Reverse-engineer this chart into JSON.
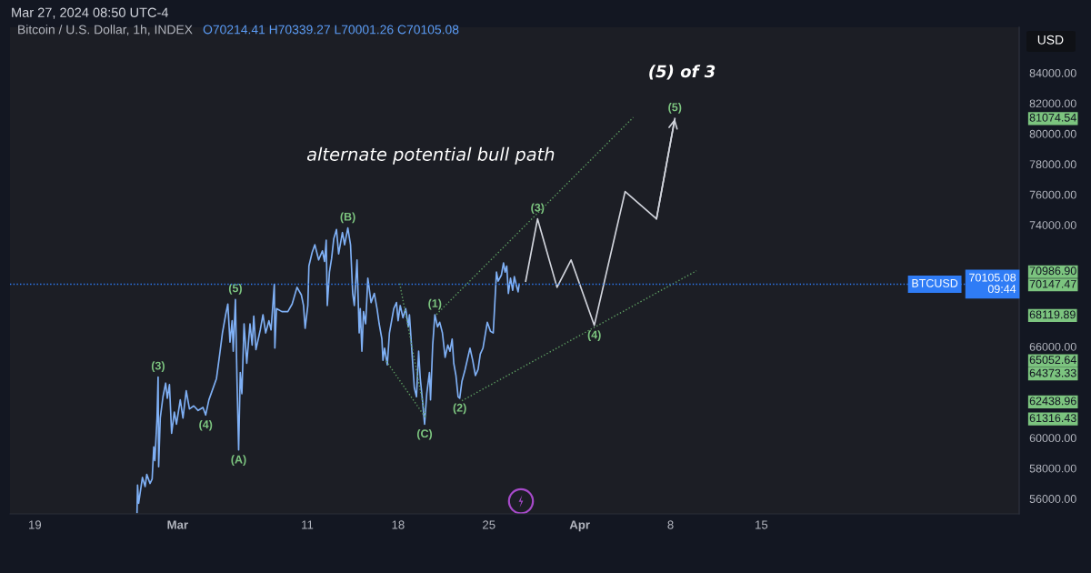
{
  "chart_data": {
    "type": "line",
    "title": "Bitcoin / U.S. Dollar, 1h, INDEX",
    "subtitle": "O70214.41 H70339.27 L70001.26 C70105.08",
    "ylabel": "USD",
    "xlim": [
      "2024-02-17T02:00",
      "2024-05-04T21:00"
    ],
    "xticks": [
      {
        "value": "2024-02-19",
        "label": "19"
      },
      {
        "value": "2024-03-01",
        "label": "Mar"
      },
      {
        "value": "2024-03-11",
        "label": "11"
      },
      {
        "value": "2024-03-18",
        "label": "18"
      },
      {
        "value": "2024-03-25",
        "label": "25"
      },
      {
        "value": "2024-04-01",
        "label": "Apr"
      },
      {
        "value": "2024-04-08",
        "label": "8"
      },
      {
        "value": "2024-04-15",
        "label": "15"
      }
    ],
    "ylim": [
      55000,
      87000
    ],
    "yticks": [
      {
        "value": 84000,
        "label": "84000.00"
      },
      {
        "value": 82000,
        "label": "82000.00"
      },
      {
        "value": 80000,
        "label": "80000.00"
      },
      {
        "value": 78000,
        "label": "78000.00"
      },
      {
        "value": 76000,
        "label": "76000.00"
      },
      {
        "value": 74000,
        "label": "74000.00"
      },
      {
        "value": 66000,
        "label": "66000.00"
      },
      {
        "value": 60000,
        "label": "60000.00"
      },
      {
        "value": 58000,
        "label": "58000.00"
      },
      {
        "value": 56000,
        "label": "56000.00"
      }
    ],
    "y2lim": [
      55000,
      87000
    ],
    "y2ticks": [
      81074.54,
      {
        "value": 70986.9,
        "label": "70986.90"
      },
      70147.47,
      68119.89,
      65052.64,
      64373.33,
      62438.96,
      61316.43
    ],
    "ref_lines": [
      {
        "axis": "y2",
        "value": 70105.08,
        "label": "BTCUSD",
        "color": "#2f7cf6",
        "line_style": "dotted"
      }
    ],
    "series": [
      {
        "color": "#7fb0f5",
        "line_style": "solid",
        "x": [
          "2024-02-26T21:00",
          "2024-02-26T22:00",
          "2024-02-27T00:00",
          "2024-02-27T07:00",
          "2024-02-27T12:00",
          "2024-02-27T15:00",
          "2024-02-27T21:00",
          "2024-02-28T01:00",
          "2024-02-28T04:00",
          "2024-02-28T06:00",
          "2024-02-28T10:00",
          "2024-02-28T12:00",
          "2024-02-28T13:00",
          "2024-02-28T16:00",
          "2024-02-28T21:00",
          "2024-02-29T02:00",
          "2024-02-29T05:00",
          "2024-02-29T09:00",
          "2024-02-29T13:00",
          "2024-02-29T18:00",
          "2024-02-29T22:00",
          "2024-03-01T05:00",
          "2024-03-01T10:00",
          "2024-03-01T16:00",
          "2024-03-01T22:00",
          "2024-03-02T06:00",
          "2024-03-02T14:00",
          "2024-03-02T23:00",
          "2024-03-03T04:00",
          "2024-03-03T10:00",
          "2024-03-04T00:00",
          "2024-03-04T06:00",
          "2024-03-04T11:00",
          "2024-03-04T17:00",
          "2024-03-04T21:00",
          "2024-03-05T01:00",
          "2024-03-05T05:00",
          "2024-03-05T07:00",
          "2024-03-05T11:00",
          "2024-03-05T14:00",
          "2024-03-05T17:00",
          "2024-03-05T20:00",
          "2024-03-05T23:00",
          "2024-03-06T03:00",
          "2024-03-06T08:00",
          "2024-03-06T14:00",
          "2024-03-06T18:00",
          "2024-03-06T21:00",
          "2024-03-07T01:00",
          "2024-03-07T09:00",
          "2024-03-07T14:00",
          "2024-03-07T19:00",
          "2024-03-08T01:00",
          "2024-03-08T05:00",
          "2024-03-08T11:00",
          "2024-03-08T12:00",
          "2024-03-08T15:00",
          "2024-03-09T01:00",
          "2024-03-09T12:00",
          "2024-03-09T20:00",
          "2024-03-10T05:00",
          "2024-03-10T13:00",
          "2024-03-10T17:00",
          "2024-03-10T20:00",
          "2024-03-11T01:00",
          "2024-03-11T03:00",
          "2024-03-11T09:00",
          "2024-03-11T14:00",
          "2024-03-11T21:00",
          "2024-03-12T04:00",
          "2024-03-12T08:00",
          "2024-03-12T11:00",
          "2024-03-12T13:00",
          "2024-03-12T17:00",
          "2024-03-12T21:00",
          "2024-03-13T01:00",
          "2024-03-13T06:00",
          "2024-03-13T10:00",
          "2024-03-13T17:00",
          "2024-03-13T21:00",
          "2024-03-14T03:00",
          "2024-03-14T08:00",
          "2024-03-14T12:00",
          "2024-03-14T15:00",
          "2024-03-14T20:00",
          "2024-03-15T00:00",
          "2024-03-15T02:00",
          "2024-03-15T05:00",
          "2024-03-15T08:00",
          "2024-03-15T12:00",
          "2024-03-15T16:00",
          "2024-03-15T22:00",
          "2024-03-16T04:00",
          "2024-03-16T09:00",
          "2024-03-16T13:00",
          "2024-03-16T18:00",
          "2024-03-16T20:00",
          "2024-03-16T23:00",
          "2024-03-17T04:00",
          "2024-03-17T08:00",
          "2024-03-17T16:00",
          "2024-03-17T21:00",
          "2024-03-18T00:00",
          "2024-03-18T04:00",
          "2024-03-18T09:00",
          "2024-03-18T14:00",
          "2024-03-18T19:00",
          "2024-03-18T21:00",
          "2024-03-19T03:00",
          "2024-03-19T06:00",
          "2024-03-19T10:00",
          "2024-03-19T14:00",
          "2024-03-19T17:00",
          "2024-03-19T21:00",
          "2024-03-20T01:00",
          "2024-03-20T05:00",
          "2024-03-20T10:00",
          "2024-03-20T12:00",
          "2024-03-20T16:00",
          "2024-03-20T20:00",
          "2024-03-21T01:00",
          "2024-03-21T05:00",
          "2024-03-21T10:00",
          "2024-03-21T15:00",
          "2024-03-21T20:00",
          "2024-03-22T00:00",
          "2024-03-22T04:00",
          "2024-03-22T07:00",
          "2024-03-22T11:00",
          "2024-03-22T15:00",
          "2024-03-22T18:00",
          "2024-03-22T22:00",
          "2024-03-23T04:00",
          "2024-03-23T13:00",
          "2024-03-23T18:00",
          "2024-03-23T23:00",
          "2024-03-24T04:00",
          "2024-03-24T08:00",
          "2024-03-24T13:00",
          "2024-03-24T21:00",
          "2024-03-25T03:00",
          "2024-03-25T08:00",
          "2024-03-25T11:00",
          "2024-03-25T14:00",
          "2024-03-25T17:00",
          "2024-03-25T23:00",
          "2024-03-26T03:00",
          "2024-03-26T06:00",
          "2024-03-26T09:00",
          "2024-03-26T12:00",
          "2024-03-26T16:00",
          "2024-03-26T20:00",
          "2024-03-26T23:00",
          "2024-03-27T03:00",
          "2024-03-27T06:00",
          "2024-03-27T08:00"
        ],
        "values": [
          55100,
          56900,
          55700,
          57400,
          56800,
          57600,
          57000,
          57300,
          59400,
          58500,
          61300,
          64000,
          58100,
          61300,
          62700,
          63600,
          62600,
          63500,
          60300,
          61700,
          60900,
          62500,
          61300,
          63100,
          61900,
          62100,
          61800,
          62000,
          61500,
          62500,
          63900,
          65500,
          66900,
          68100,
          68800,
          66300,
          67700,
          65700,
          69100,
          63700,
          59200,
          64300,
          62900,
          67500,
          64900,
          67500,
          66100,
          68000,
          65800,
          67100,
          68100,
          66900,
          67700,
          67100,
          70100,
          65900,
          68500,
          68300,
          68300,
          68800,
          69900,
          69400,
          68700,
          67200,
          68700,
          71300,
          72200,
          72700,
          71700,
          72300,
          71600,
          73000,
          68700,
          70900,
          71800,
          73100,
          73700,
          72100,
          73500,
          72700,
          73800,
          72700,
          69500,
          68700,
          71700,
          66900,
          68500,
          65700,
          68300,
          67500,
          70500,
          68900,
          69500,
          68500,
          67500,
          66500,
          65100,
          65900,
          64800,
          66900,
          68500,
          68900,
          67700,
          68700,
          67900,
          68500,
          67300,
          68100,
          64900,
          63300,
          62700,
          65700,
          63900,
          62500,
          60900,
          62900,
          64300,
          62500,
          66100,
          68100,
          67300,
          67600,
          66900,
          65300,
          66100,
          65700,
          66500,
          64900,
          64100,
          62700,
          62600,
          63700,
          64500,
          65900,
          65100,
          64100,
          64500,
          65500,
          65900,
          67600,
          67000,
          66900,
          68900,
          70900,
          70300,
          70700,
          71500,
          70900,
          71300,
          69500,
          70500,
          69700,
          70600,
          70000,
          69600,
          70105.08
        ]
      },
      {
        "color": "#d1d4dc",
        "line_style": "solid",
        "x": [
          "2024-03-27T20:00",
          "2024-03-28T18:00",
          "2024-03-30T06:00",
          "2024-03-31T08:00",
          "2024-04-02T03:00",
          "2024-04-04T12:00",
          "2024-04-06T22:00",
          "2024-04-08T08:00"
        ],
        "values": [
          70300,
          74400,
          69900,
          71700,
          67400,
          76200,
          74400,
          81000
        ]
      },
      {
        "axis": "y2",
        "color": "#5e9e62",
        "line_style": "dotted",
        "x": [
          "2024-03-20T23:00",
          "2024-04-05T03:00"
        ],
        "values": [
          68119.89,
          81074.54
        ]
      },
      {
        "axis": "y2",
        "color": "#5e9e62",
        "line_style": "dotted",
        "x": [
          "2024-03-22T22:00",
          "2024-04-10T00:00"
        ],
        "values": [
          62438.96,
          70986.9
        ]
      },
      {
        "axis": "y2",
        "color": "#5e9e62",
        "line_style": "dotted",
        "x": [
          "2024-03-18T03:00",
          "2024-03-20T03:00"
        ],
        "values": [
          70147.47,
          61316.43
        ]
      },
      {
        "axis": "y2",
        "color": "#5e9e62",
        "line_style": "dotted",
        "x": [
          "2024-03-17T02:00",
          "2024-03-20T03:00"
        ],
        "values": [
          65052.64,
          61316.43
        ]
      }
    ],
    "annotations": [
      "Mar 27, 2024 08:50 UTC-4",
      "alternate potential bull path",
      "(5) of 3",
      "70105.08\n09:44",
      {
        "text": "(3)",
        "x": "2024-02-28T12:00",
        "y": 64000
      },
      {
        "text": "(4)",
        "x": "2024-03-03T04:00",
        "y": 61500
      },
      {
        "text": "(5)",
        "x": "2024-03-05T11:00",
        "y": 69100
      },
      {
        "text": "(A)",
        "x": "2024-03-05T17:00",
        "y": 59200
      },
      {
        "text": "(B)",
        "x": "2024-03-14T03:00",
        "y": 73800
      },
      {
        "text": "(C)",
        "x": "2024-03-20T01:00",
        "y": 60900
      },
      {
        "text": "(1)",
        "x": "2024-03-20T20:00",
        "y": 68100
      },
      {
        "text": "(2)",
        "x": "2024-03-22T18:00",
        "y": 62600
      },
      {
        "text": "(3)",
        "x": "2024-03-28T18:00",
        "y": 74400
      },
      {
        "text": "(4)",
        "x": "2024-04-02T03:00",
        "y": 67400
      },
      {
        "text": "(5)",
        "x": "2024-04-08T08:00",
        "y": 81000
      }
    ]
  }
}
